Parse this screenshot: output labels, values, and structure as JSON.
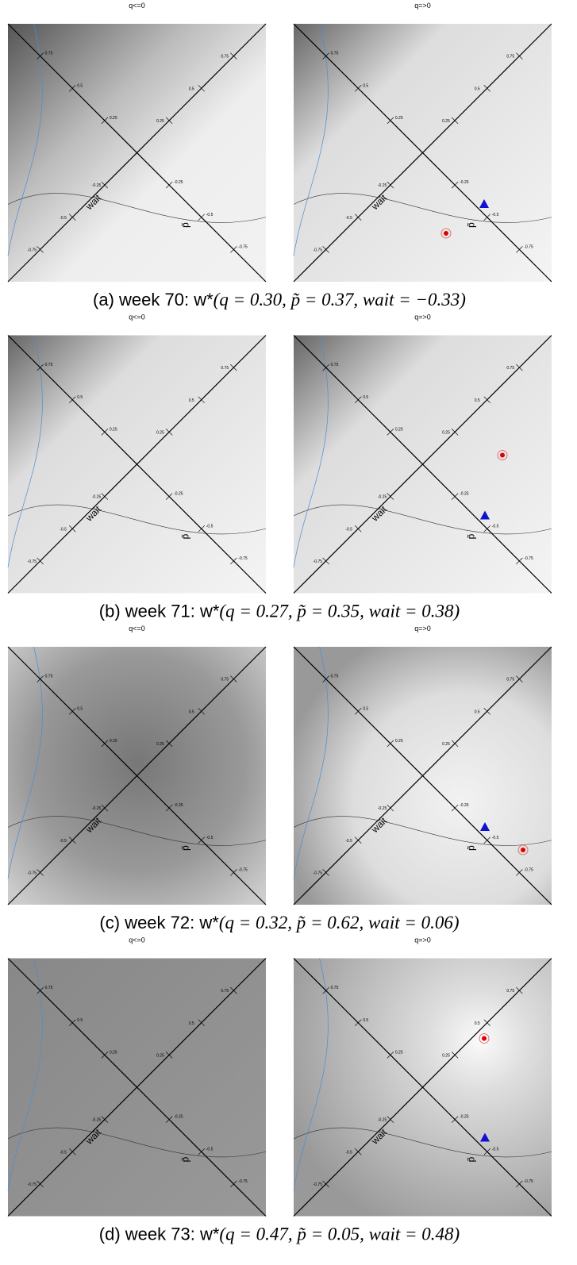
{
  "panel_titles": [
    "q<=0",
    "q=>0"
  ],
  "axis_labels": {
    "wait": "wait",
    "p": "p̃"
  },
  "ticks": [
    "0.75",
    "0.5",
    "0.25",
    "-0.25",
    "-0.5",
    "-0.75"
  ],
  "figures": [
    {
      "label": "(a) week 70: w*",
      "args": "(q = 0.30, p̃ = 0.37, wait = −0.33)"
    },
    {
      "label": "(b) week 71: w*",
      "args": "(q = 0.27, p̃ = 0.35, wait = 0.38)"
    },
    {
      "label": "(c) week 72: w*",
      "args": "(q = 0.32, p̃ = 0.62, wait = 0.06)"
    },
    {
      "label": "(d) week 73: w*",
      "args": "(q = 0.47, p̃ = 0.05, wait = 0.48)"
    }
  ]
}
